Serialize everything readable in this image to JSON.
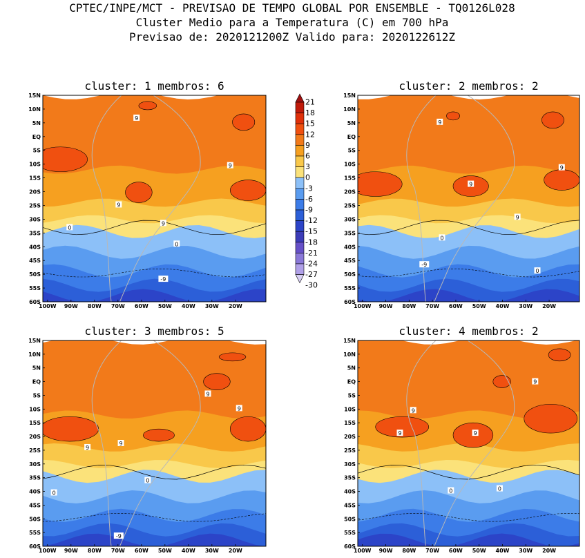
{
  "header": {
    "line1": "CPTEC/INPE/MCT - PREVISAO DE TEMPO GLOBAL POR ENSEMBLE - TQ0126L028",
    "line2": "Cluster Medio para a Temperatura (C) em 700 hPa",
    "line3": "Previsao de: 2020121200Z   Valido para: 2020122612Z"
  },
  "chart_data": {
    "type": "heatmap",
    "variable": "Temperature (C) at 700 hPa",
    "x_ticks": [
      "100W",
      "90W",
      "80W",
      "70W",
      "60W",
      "50W",
      "40W",
      "30W",
      "20W"
    ],
    "y_ticks": [
      "15N",
      "10N",
      "5N",
      "EQ",
      "5S",
      "10S",
      "15S",
      "20S",
      "25S",
      "30S",
      "35S",
      "40S",
      "45S",
      "50S",
      "55S",
      "60S"
    ],
    "lon_range": [
      -102,
      -7
    ],
    "lat_range": [
      -60,
      15
    ],
    "colorbar": {
      "levels": [
        21,
        18,
        15,
        12,
        9,
        6,
        3,
        0,
        -3,
        -6,
        -9,
        -12,
        -15,
        -18,
        -21,
        -24,
        -27,
        -30
      ],
      "labels": [
        "21",
        "18",
        "15",
        "12",
        "9",
        "6",
        "3",
        "0",
        "-3",
        "-6",
        "-9",
        "-12",
        "-15",
        "-18",
        "-21",
        "-24",
        "-27",
        "-30"
      ],
      "colors": [
        "#a01010",
        "#c01a0a",
        "#e0300a",
        "#f05010",
        "#f27a1a",
        "#f6a020",
        "#f9c84a",
        "#fbe27a",
        "#8cc0f8",
        "#5a9cf0",
        "#3c7ce8",
        "#2c5fd8",
        "#2c44c8",
        "#3c3cb8",
        "#6650c8",
        "#8a78d8",
        "#b0a0e8",
        "#d8d0f4"
      ]
    },
    "panels": [
      {
        "title": "cluster: 1   membros: 6",
        "contour_labels": [
          "9",
          "9",
          "9",
          "9",
          "0",
          "0",
          "-9"
        ]
      },
      {
        "title": "cluster: 2   membros: 2",
        "contour_labels": [
          "9",
          "9",
          "9",
          "9",
          "0",
          "0",
          "-9"
        ]
      },
      {
        "title": "cluster: 3   membros: 5",
        "contour_labels": [
          "9",
          "9",
          "9",
          "9",
          "0",
          "0",
          "-9"
        ]
      },
      {
        "title": "cluster: 4   membros: 2",
        "contour_labels": [
          "9",
          "9",
          "9",
          "9",
          "0",
          "0"
        ]
      }
    ]
  }
}
